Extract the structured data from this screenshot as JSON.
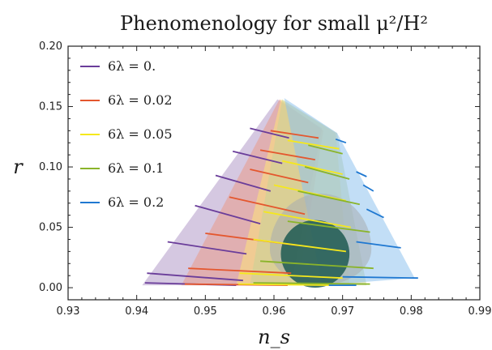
{
  "chart_data": {
    "type": "line",
    "title": "Phenomenology for small μ²/H²",
    "xlabel": "n_s",
    "ylabel": "r",
    "xlim": [
      0.93,
      0.99
    ],
    "ylim": [
      -0.01,
      0.2
    ],
    "xticks": [
      "0.93",
      "0.94",
      "0.95",
      "0.96",
      "0.97",
      "0.98",
      "0.99"
    ],
    "yticks": [
      "0.00",
      "0.05",
      "0.10",
      "0.15",
      "0.20"
    ],
    "legend_position": "top-left",
    "grid": false,
    "series": [
      {
        "name": "6λ = 0.",
        "color": "#6a3d9a",
        "fill": "#b39ac8",
        "region": [
          [
            0.9605,
            0.156
          ],
          [
            0.9408,
            0.002
          ],
          [
            0.9625,
            0.002
          ],
          [
            0.967,
            0.132
          ]
        ],
        "lines": [
          [
            [
              0.9412,
              0.004
            ],
            [
              0.9545,
              0.002
            ]
          ],
          [
            [
              0.9415,
              0.012
            ],
            [
              0.9555,
              0.006
            ]
          ],
          [
            [
              0.9445,
              0.038
            ],
            [
              0.956,
              0.028
            ]
          ],
          [
            [
              0.9485,
              0.068
            ],
            [
              0.958,
              0.053
            ]
          ],
          [
            [
              0.9515,
              0.093
            ],
            [
              0.9595,
              0.08
            ]
          ],
          [
            [
              0.954,
              0.113
            ],
            [
              0.9612,
              0.103
            ]
          ],
          [
            [
              0.9565,
              0.132
            ],
            [
              0.9622,
              0.124
            ]
          ]
        ]
      },
      {
        "name": "6λ = 0.02",
        "color": "#e4572e",
        "fill": "#e99a8a",
        "region": [
          [
            0.9608,
            0.156
          ],
          [
            0.9465,
            0.002
          ],
          [
            0.9635,
            0.002
          ],
          [
            0.9672,
            0.13
          ]
        ],
        "lines": [
          [
            [
              0.947,
              0.003
            ],
            [
              0.962,
              0.002
            ]
          ],
          [
            [
              0.9475,
              0.016
            ],
            [
              0.9625,
              0.012
            ]
          ],
          [
            [
              0.95,
              0.045
            ],
            [
              0.9635,
              0.035
            ]
          ],
          [
            [
              0.9535,
              0.075
            ],
            [
              0.9645,
              0.061
            ]
          ],
          [
            [
              0.9565,
              0.098
            ],
            [
              0.965,
              0.087
            ]
          ],
          [
            [
              0.958,
              0.114
            ],
            [
              0.966,
              0.106
            ]
          ],
          [
            [
              0.9595,
              0.13
            ],
            [
              0.9665,
              0.124
            ]
          ]
        ]
      },
      {
        "name": "6λ = 0.05",
        "color": "#f5e81c",
        "fill": "#fde17a",
        "region": [
          [
            0.961,
            0.156
          ],
          [
            0.9545,
            0.002
          ],
          [
            0.971,
            0.002
          ],
          [
            0.969,
            0.128
          ]
        ],
        "lines": [
          [
            [
              0.9548,
              0.003
            ],
            [
              0.969,
              0.002
            ]
          ],
          [
            [
              0.955,
              0.012
            ],
            [
              0.97,
              0.008
            ]
          ],
          [
            [
              0.957,
              0.04
            ],
            [
              0.9705,
              0.03
            ]
          ],
          [
            [
              0.9585,
              0.063
            ],
            [
              0.9712,
              0.05
            ]
          ],
          [
            [
              0.96,
              0.085
            ],
            [
              0.9705,
              0.072
            ]
          ],
          [
            [
              0.9612,
              0.105
            ],
            [
              0.97,
              0.094
            ]
          ],
          [
            [
              0.962,
              0.122
            ],
            [
              0.9695,
              0.115
            ]
          ]
        ]
      },
      {
        "name": "6λ = 0.1",
        "color": "#8ab42a",
        "fill": "#c9d398",
        "region": [
          [
            0.9612,
            0.156
          ],
          [
            0.9565,
            0.002
          ],
          [
            0.9735,
            0.002
          ],
          [
            0.9692,
            0.128
          ]
        ],
        "lines": [
          [
            [
              0.957,
              0.004
            ],
            [
              0.974,
              0.003
            ]
          ],
          [
            [
              0.958,
              0.022
            ],
            [
              0.9745,
              0.016
            ]
          ],
          [
            [
              0.962,
              0.055
            ],
            [
              0.974,
              0.046
            ]
          ],
          [
            [
              0.9635,
              0.08
            ],
            [
              0.9725,
              0.069
            ]
          ],
          [
            [
              0.9645,
              0.1
            ],
            [
              0.971,
              0.09
            ]
          ],
          [
            [
              0.965,
              0.118
            ],
            [
              0.97,
              0.111
            ]
          ]
        ]
      },
      {
        "name": "6λ = 0.2",
        "color": "#1f78d1",
        "fill": "#8fc2ee",
        "region": [
          [
            0.9615,
            0.157
          ],
          [
            0.967,
            0.002
          ],
          [
            0.9805,
            0.008
          ],
          [
            0.9692,
            0.128
          ]
        ],
        "lines": [
          [
            [
              0.968,
              0.002
            ],
            [
              0.972,
              0.002
            ]
          ],
          [
            [
              0.97,
              0.009
            ],
            [
              0.981,
              0.008
            ]
          ],
          [
            [
              0.972,
              0.038
            ],
            [
              0.9785,
              0.033
            ]
          ],
          [
            [
              0.9735,
              0.065
            ],
            [
              0.976,
              0.058
            ]
          ],
          [
            [
              0.973,
              0.085
            ],
            [
              0.9745,
              0.08
            ]
          ],
          [
            [
              0.972,
              0.096
            ],
            [
              0.9735,
              0.092
            ]
          ],
          [
            [
              0.969,
              0.123
            ],
            [
              0.9705,
              0.12
            ]
          ]
        ]
      }
    ],
    "observational_contours": [
      {
        "label": "",
        "color": "#a7adb0",
        "opacity": 0.55,
        "center": [
          0.9668,
          0.032
        ],
        "rx": 0.0074,
        "ry_top": 0.046,
        "ry_bottom": 0.03
      },
      {
        "label": "",
        "color": "#1e5a52",
        "opacity": 0.85,
        "center": [
          0.966,
          0.028
        ],
        "rx": 0.005,
        "ry_top": 0.028,
        "ry_bottom": 0.028
      }
    ]
  }
}
